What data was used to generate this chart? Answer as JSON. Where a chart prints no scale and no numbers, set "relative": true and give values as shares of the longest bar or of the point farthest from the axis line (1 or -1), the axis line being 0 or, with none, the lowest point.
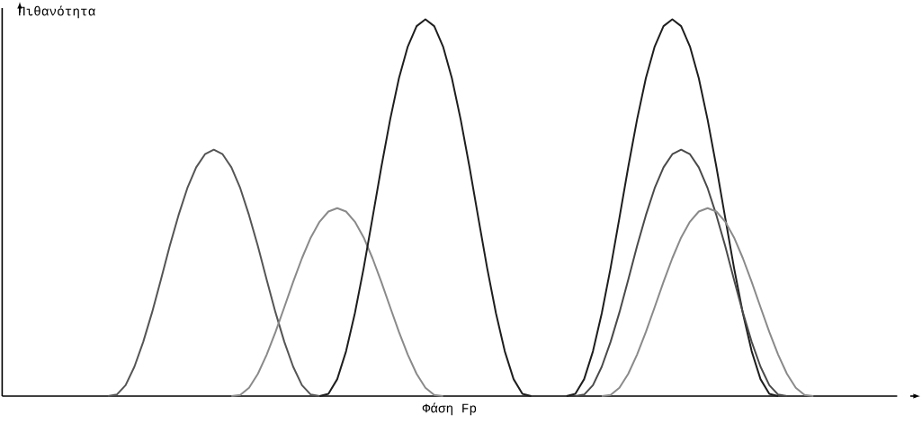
{
  "chart_data": {
    "type": "line",
    "relative": true,
    "ylabel": "Πιθανότητα",
    "xlabel": "Φάση Fp",
    "marker": "none",
    "line_style": "solid",
    "categories": [
      null,
      null,
      null,
      null,
      null,
      null,
      null,
      null,
      null,
      null,
      null,
      null,
      null,
      null,
      null,
      null,
      null,
      null,
      null,
      null,
      null,
      null,
      null,
      null,
      null,
      null,
      null,
      null,
      null,
      null,
      null,
      null,
      null,
      null,
      null,
      null,
      null,
      null,
      null,
      null,
      null,
      null,
      null,
      null,
      null,
      null,
      null,
      null,
      null,
      null,
      null,
      null,
      null,
      null,
      null,
      null,
      null,
      null,
      null,
      null,
      null,
      null,
      null,
      null,
      null,
      null,
      null,
      null,
      null,
      null,
      null,
      null,
      null,
      null,
      null,
      null,
      null,
      null,
      null,
      null,
      null,
      null,
      null,
      null,
      null,
      null,
      null,
      null,
      null,
      null,
      null,
      null,
      null,
      null,
      null,
      null,
      null,
      null,
      null
    ],
    "series": [
      {
        "color": "#555555",
        "values": [
          null,
          null,
          null,
          null,
          null,
          null,
          null,
          null,
          null,
          null,
          0,
          0.004,
          0.029,
          0.078,
          0.144,
          0.222,
          0.309,
          0.398,
          0.48,
          0.552,
          0.607,
          0.642,
          0.654,
          0.642,
          0.607,
          0.552,
          0.48,
          0.398,
          0.309,
          0.222,
          0.144,
          0.078,
          0.029,
          0.004,
          0,
          null,
          null,
          null,
          null,
          null,
          null,
          null,
          null,
          null,
          null,
          null,
          null,
          null,
          null,
          null,
          null,
          null,
          null,
          null,
          null,
          null,
          null,
          null,
          null,
          null,
          null,
          null,
          null,
          null,
          null,
          null,
          null,
          null,
          null,
          null,
          null,
          null,
          null,
          null,
          null,
          null,
          null,
          null,
          null,
          null,
          null,
          null,
          null,
          null,
          null,
          null,
          null,
          null,
          null,
          null,
          null,
          null,
          null,
          null,
          null,
          null,
          null,
          null,
          null
        ]
      },
      {
        "color": "#8a8a8a",
        "values": [
          null,
          null,
          null,
          null,
          null,
          null,
          null,
          null,
          null,
          null,
          null,
          null,
          null,
          null,
          null,
          null,
          null,
          null,
          null,
          null,
          null,
          null,
          null,
          null,
          0,
          0.003,
          0.022,
          0.059,
          0.11,
          0.17,
          0.236,
          0.303,
          0.366,
          0.421,
          0.463,
          0.49,
          0.499,
          0.49,
          0.463,
          0.421,
          0.366,
          0.303,
          0.236,
          0.17,
          0.11,
          0.059,
          0.022,
          0.003,
          0,
          null,
          null,
          null,
          null,
          null,
          null,
          null,
          null,
          null,
          null,
          null,
          null,
          null,
          null,
          null,
          null,
          null,
          null,
          null,
          null,
          null,
          null,
          null,
          null,
          null,
          null,
          null,
          null,
          null,
          null,
          null,
          null,
          null,
          null,
          null,
          null,
          null,
          null,
          null,
          null,
          null,
          null,
          null,
          null,
          null,
          null,
          null,
          null,
          null,
          null
        ]
      },
      {
        "color": "#1e1e1e",
        "values": [
          null,
          null,
          null,
          null,
          null,
          null,
          null,
          null,
          null,
          null,
          null,
          null,
          null,
          null,
          null,
          null,
          null,
          null,
          null,
          null,
          null,
          null,
          null,
          null,
          null,
          null,
          null,
          null,
          null,
          null,
          null,
          null,
          null,
          null,
          0,
          0.006,
          0.045,
          0.119,
          0.22,
          0.34,
          0.473,
          0.608,
          0.734,
          0.844,
          0.928,
          0.982,
          1,
          0.982,
          0.928,
          0.844,
          0.734,
          0.608,
          0.473,
          0.34,
          0.22,
          0.119,
          0.045,
          0.006,
          0,
          null,
          null,
          null,
          null,
          null,
          null,
          null,
          null,
          null,
          null,
          null,
          null,
          null,
          null,
          null,
          null,
          null,
          null,
          null,
          null,
          null,
          null,
          null,
          null,
          null,
          null,
          null,
          null,
          null,
          null,
          null,
          null,
          null,
          null,
          null,
          null,
          null,
          null,
          null,
          null
        ]
      },
      {
        "color": "#1e1e1e",
        "values": [
          null,
          null,
          null,
          null,
          null,
          null,
          null,
          null,
          null,
          null,
          null,
          null,
          null,
          null,
          null,
          null,
          null,
          null,
          null,
          null,
          null,
          null,
          null,
          null,
          null,
          null,
          null,
          null,
          null,
          null,
          null,
          null,
          null,
          null,
          null,
          null,
          null,
          null,
          null,
          null,
          null,
          null,
          null,
          null,
          null,
          null,
          null,
          null,
          null,
          null,
          null,
          null,
          null,
          null,
          null,
          null,
          null,
          null,
          null,
          null,
          null,
          null,
          0,
          0.006,
          0.045,
          0.119,
          0.22,
          0.34,
          0.473,
          0.608,
          0.734,
          0.844,
          0.928,
          0.982,
          1,
          0.982,
          0.928,
          0.844,
          0.734,
          0.608,
          0.473,
          0.34,
          0.22,
          0.119,
          0.045,
          0.006,
          0,
          null,
          null,
          null,
          null,
          null,
          null,
          null,
          null,
          null,
          null,
          null,
          null
        ]
      },
      {
        "color": "#4a4a4a",
        "values": [
          null,
          null,
          null,
          null,
          null,
          null,
          null,
          null,
          null,
          null,
          null,
          null,
          null,
          null,
          null,
          null,
          null,
          null,
          null,
          null,
          null,
          null,
          null,
          null,
          null,
          null,
          null,
          null,
          null,
          null,
          null,
          null,
          null,
          null,
          null,
          null,
          null,
          null,
          null,
          null,
          null,
          null,
          null,
          null,
          null,
          null,
          null,
          null,
          null,
          null,
          null,
          null,
          null,
          null,
          null,
          null,
          null,
          null,
          null,
          null,
          null,
          null,
          null,
          0,
          0.004,
          0.029,
          0.078,
          0.144,
          0.222,
          0.309,
          0.398,
          0.48,
          0.552,
          0.607,
          0.642,
          0.654,
          0.642,
          0.607,
          0.552,
          0.48,
          0.398,
          0.309,
          0.222,
          0.144,
          0.078,
          0.029,
          0.004,
          0,
          null,
          null,
          null,
          null,
          null,
          null,
          null,
          null,
          null,
          null,
          null
        ]
      },
      {
        "color": "#8a8a8a",
        "values": [
          null,
          null,
          null,
          null,
          null,
          null,
          null,
          null,
          null,
          null,
          null,
          null,
          null,
          null,
          null,
          null,
          null,
          null,
          null,
          null,
          null,
          null,
          null,
          null,
          null,
          null,
          null,
          null,
          null,
          null,
          null,
          null,
          null,
          null,
          null,
          null,
          null,
          null,
          null,
          null,
          null,
          null,
          null,
          null,
          null,
          null,
          null,
          null,
          null,
          null,
          null,
          null,
          null,
          null,
          null,
          null,
          null,
          null,
          null,
          null,
          null,
          null,
          null,
          null,
          null,
          null,
          0,
          0.003,
          0.022,
          0.059,
          0.11,
          0.17,
          0.236,
          0.303,
          0.366,
          0.421,
          0.463,
          0.49,
          0.499,
          0.49,
          0.463,
          0.421,
          0.366,
          0.303,
          0.236,
          0.17,
          0.11,
          0.059,
          0.022,
          0.003,
          0,
          null,
          null,
          null,
          null,
          null,
          null,
          null,
          null
        ]
      }
    ]
  }
}
